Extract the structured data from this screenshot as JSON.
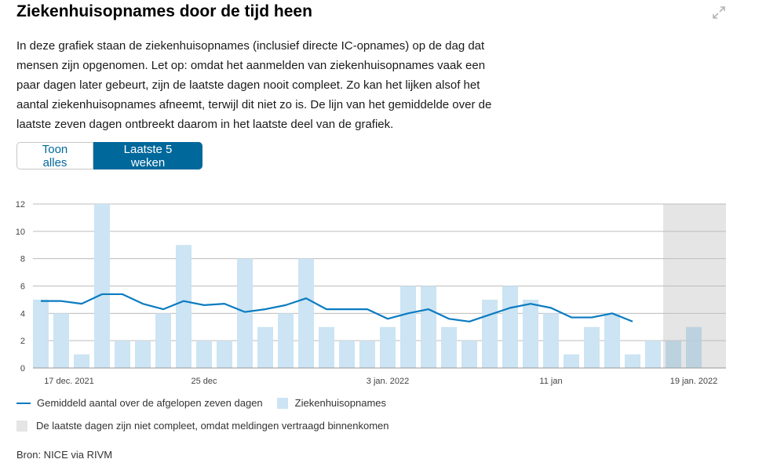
{
  "header": {
    "title": "Ziekenhuisopnames door de tijd heen"
  },
  "description": "In deze grafiek staan de ziekenhuisopnames (inclusief directe IC-opnames) op de dag dat mensen zijn opgenomen. Let op: omdat het aanmelden van ziekenhuisopnames vaak een paar dagen later gebeurt, zijn de laatste dagen nooit compleet. Zo kan het lijken alsof het aantal ziekenhuisopnames afneemt, terwijl dit niet zo is. De lijn van het gemiddelde over de laatste zeven dagen ontbreekt daarom in het laatste deel van de grafiek.",
  "buttons": {
    "show_all": "Toon alles",
    "last_5_weeks": "Laatste 5 weken"
  },
  "colors": {
    "bar": "#cce4f3",
    "line": "#0a7bc1",
    "incomplete": "#e5e5e5",
    "accent": "#01689b"
  },
  "chart_data": {
    "type": "bar",
    "start_date": "17 dec. 2021",
    "ylim": [
      0,
      12
    ],
    "yticks": [
      0,
      2,
      4,
      6,
      8,
      10,
      12
    ],
    "xtick_labels": [
      {
        "label": "17 dec. 2021",
        "index": 0
      },
      {
        "label": "25 dec",
        "index": 8
      },
      {
        "label": "3 jan. 2022",
        "index": 17
      },
      {
        "label": "11 jan",
        "index": 25
      },
      {
        "label": "19 jan. 2022",
        "index": 33
      }
    ],
    "series": [
      {
        "name": "Ziekenhuisopnames",
        "type": "bar",
        "values": [
          5,
          4,
          1,
          12,
          2,
          2,
          4,
          9,
          2,
          2,
          8,
          3,
          4,
          8,
          3,
          2,
          2,
          3,
          6,
          6,
          3,
          2,
          5,
          6,
          5,
          4,
          1,
          3,
          4,
          1,
          2,
          2,
          3
        ]
      },
      {
        "name": "Gemiddeld aantal over de afgelopen zeven dagen",
        "type": "line",
        "values": [
          4.9,
          4.9,
          4.7,
          5.4,
          5.4,
          4.7,
          4.3,
          4.9,
          4.6,
          4.7,
          4.1,
          4.3,
          4.6,
          5.1,
          4.3,
          4.3,
          4.3,
          3.6,
          4.0,
          4.3,
          3.6,
          3.4,
          3.9,
          4.4,
          4.7,
          4.4,
          3.7,
          3.7,
          4.0,
          3.4
        ]
      }
    ],
    "incomplete_from_index": 30.5,
    "grid": true
  },
  "legend": {
    "line": "Gemiddeld aantal over de afgelopen zeven dagen",
    "bars": "Ziekenhuisopnames",
    "incomplete": "De laatste dagen zijn niet compleet, omdat meldingen vertraagd binnenkomen"
  },
  "source": "Bron: NICE via RIVM"
}
